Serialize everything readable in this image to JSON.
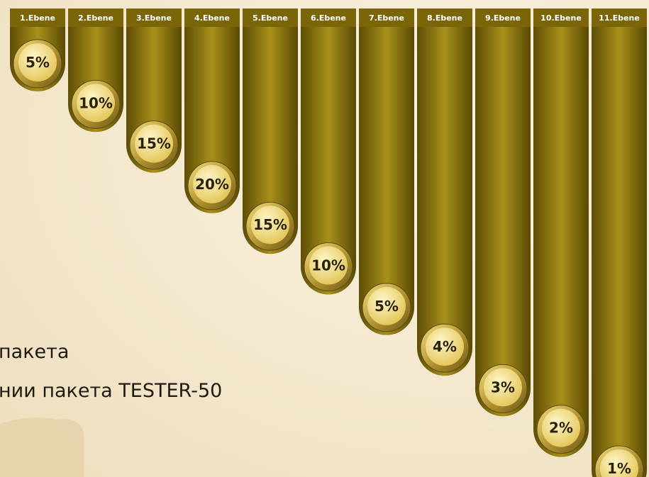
{
  "levels": [
    {
      "label": "1.Ebene",
      "percent": "5%"
    },
    {
      "label": "2.Ebene",
      "percent": "10%"
    },
    {
      "label": "3.Ebene",
      "percent": "15%"
    },
    {
      "label": "4.Ebene",
      "percent": "20%"
    },
    {
      "label": "5.Ebene",
      "percent": "15%"
    },
    {
      "label": "6.Ebene",
      "percent": "10%"
    },
    {
      "label": "7.Ebene",
      "percent": "5%"
    },
    {
      "label": "8.Ebene",
      "percent": "4%"
    },
    {
      "label": "9.Ebene",
      "percent": "3%"
    },
    {
      "label": "10.Ebene",
      "percent": "2%"
    },
    {
      "label": "11.Ebene",
      "percent": "1%"
    }
  ],
  "text_lines": [
    "пакета",
    "нии пакета TESTER-50"
  ]
}
